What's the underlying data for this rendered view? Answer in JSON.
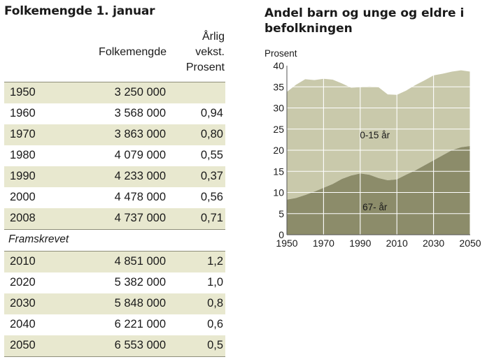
{
  "table": {
    "title": "Folkemengde 1. januar",
    "columns": {
      "population": "Folkemengde",
      "growth": [
        "Årlig",
        "vekst.",
        "Prosent"
      ]
    },
    "rows": [
      {
        "year": "1950",
        "population": "3 250 000",
        "growth": ""
      },
      {
        "year": "1960",
        "population": "3 568 000",
        "growth": "0,94"
      },
      {
        "year": "1970",
        "population": "3 863 000",
        "growth": "0,80"
      },
      {
        "year": "1980",
        "population": "4 079 000",
        "growth": "0,55"
      },
      {
        "year": "1990",
        "population": "4 233 000",
        "growth": "0,37"
      },
      {
        "year": "2000",
        "population": "4 478 000",
        "growth": "0,56"
      },
      {
        "year": "2008",
        "population": "4 737 000",
        "growth": "0,71"
      }
    ],
    "projected_label": "Framskrevet",
    "projected_rows": [
      {
        "year": "2010",
        "population": "4 851 000",
        "growth": "1,2"
      },
      {
        "year": "2020",
        "population": "5 382 000",
        "growth": "1,0"
      },
      {
        "year": "2030",
        "population": "5 848 000",
        "growth": "0,8"
      },
      {
        "year": "2040",
        "population": "6 221 000",
        "growth": "0,6"
      },
      {
        "year": "2050",
        "population": "6 553 000",
        "growth": "0,5"
      }
    ]
  },
  "chart_data": {
    "type": "area",
    "title": "Andel barn og unge og eldre i befolkningen",
    "ylabel": "Prosent",
    "xlabel": "",
    "ylim": [
      0,
      40
    ],
    "yticks": [
      0,
      5,
      10,
      15,
      20,
      25,
      30,
      35,
      40
    ],
    "xlim": [
      1950,
      2050
    ],
    "xticks": [
      1950,
      1970,
      1990,
      2010,
      2030,
      2050
    ],
    "grid": true,
    "colors": {
      "lower": "#8c8c6a",
      "upper": "#c9c9ab",
      "grid": "#ffffff"
    },
    "series": [
      {
        "label": "67- år",
        "x": [
          1950,
          1955,
          1960,
          1965,
          1970,
          1975,
          1980,
          1985,
          1990,
          1995,
          2000,
          2005,
          2010,
          2015,
          2020,
          2025,
          2030,
          2035,
          2040,
          2045,
          2050
        ],
        "values": [
          8.3,
          8.7,
          9.4,
          10.2,
          11.1,
          12.0,
          13.2,
          14.0,
          14.5,
          14.2,
          13.4,
          12.9,
          13.1,
          14.2,
          15.2,
          16.4,
          17.6,
          18.8,
          20.0,
          20.7,
          21.0
        ]
      },
      {
        "label": "0-15 år",
        "x": [
          1950,
          1955,
          1960,
          1965,
          1970,
          1975,
          1980,
          1985,
          1990,
          1995,
          2000,
          2005,
          2010,
          2015,
          2020,
          2025,
          2030,
          2035,
          2040,
          2045,
          2050
        ],
        "values": [
          25.5,
          26.8,
          27.4,
          26.4,
          25.8,
          24.7,
          22.6,
          20.8,
          20.4,
          20.9,
          21.5,
          20.3,
          20.0,
          19.9,
          20.2,
          20.1,
          20.1,
          19.3,
          18.6,
          18.2,
          17.6
        ]
      }
    ]
  }
}
